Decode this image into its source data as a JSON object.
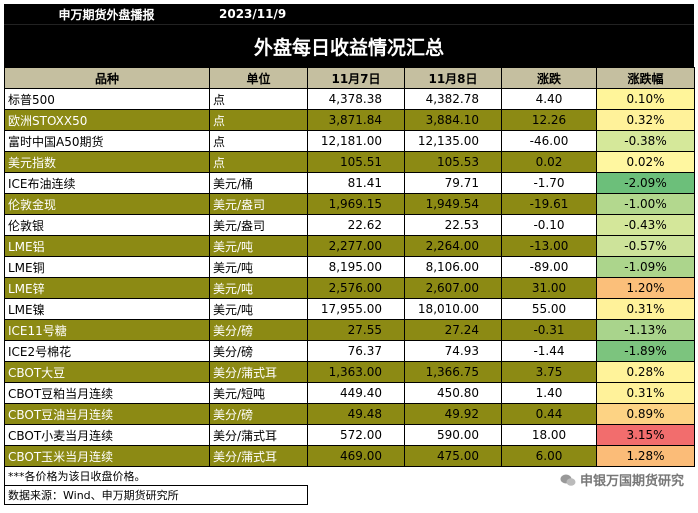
{
  "header": {
    "org": "申万期货外盘播报",
    "date": "2023/11/9"
  },
  "title": "外盘每日收益情况汇总",
  "columns": [
    "品种",
    "单位",
    "11月7日",
    "11月8日",
    "涨跌",
    "涨跌幅"
  ],
  "rows": [
    {
      "name": "标普500",
      "unit": "点",
      "d7": "4,378.38",
      "d8": "4,382.78",
      "chg": "4.40",
      "pct": "0.10%",
      "olive": false,
      "color": "#fff59a"
    },
    {
      "name": "欧洲STOXX50",
      "unit": "点",
      "d7": "3,871.84",
      "d8": "3,884.10",
      "chg": "12.26",
      "pct": "0.32%",
      "olive": true,
      "color": "#fff29a"
    },
    {
      "name": "富时中国A50期货",
      "unit": "点",
      "d7": "12,181.00",
      "d8": "12,135.00",
      "chg": "-46.00",
      "pct": "-0.38%",
      "olive": false,
      "color": "#d5e89a"
    },
    {
      "name": "美元指数",
      "unit": "点",
      "d7": "105.51",
      "d8": "105.53",
      "chg": "0.02",
      "pct": "0.02%",
      "olive": true,
      "color": "#fff7a0"
    },
    {
      "name": "ICE布油连续",
      "unit": "美元/桶",
      "d7": "81.41",
      "d8": "79.71",
      "chg": "-1.70",
      "pct": "-2.09%",
      "olive": false,
      "color": "#6cbf7a"
    },
    {
      "name": "伦敦金现",
      "unit": "美元/盎司",
      "d7": "1,969.15",
      "d8": "1,949.54",
      "chg": "-19.61",
      "pct": "-1.00%",
      "olive": true,
      "color": "#b3d88e"
    },
    {
      "name": "伦敦银",
      "unit": "美元/盎司",
      "d7": "22.62",
      "d8": "22.53",
      "chg": "-0.10",
      "pct": "-0.43%",
      "olive": false,
      "color": "#d4e79a"
    },
    {
      "name": "LME铝",
      "unit": "美元/吨",
      "d7": "2,277.00",
      "d8": "2,264.00",
      "chg": "-13.00",
      "pct": "-0.57%",
      "olive": true,
      "color": "#cde39a"
    },
    {
      "name": "LME铜",
      "unit": "美元/吨",
      "d7": "8,195.00",
      "d8": "8,106.00",
      "chg": "-89.00",
      "pct": "-1.09%",
      "olive": false,
      "color": "#acd58c"
    },
    {
      "name": "LME锌",
      "unit": "美元/吨",
      "d7": "2,576.00",
      "d8": "2,607.00",
      "chg": "31.00",
      "pct": "1.20%",
      "olive": true,
      "color": "#fbbf7a"
    },
    {
      "name": "LME镍",
      "unit": "美元/吨",
      "d7": "17,955.00",
      "d8": "18,010.00",
      "chg": "55.00",
      "pct": "0.31%",
      "olive": false,
      "color": "#fff29a"
    },
    {
      "name": "ICE11号糖",
      "unit": "美分/磅",
      "d7": "27.55",
      "d8": "27.24",
      "chg": "-0.31",
      "pct": "-1.13%",
      "olive": true,
      "color": "#a9d48c"
    },
    {
      "name": "ICE2号棉花",
      "unit": "美分/磅",
      "d7": "76.37",
      "d8": "74.93",
      "chg": "-1.44",
      "pct": "-1.89%",
      "olive": false,
      "color": "#7cc47e"
    },
    {
      "name": "CBOT大豆",
      "unit": "美分/蒲式耳",
      "d7": "1,363.00",
      "d8": "1,366.75",
      "chg": "3.75",
      "pct": "0.28%",
      "olive": true,
      "color": "#fff39a"
    },
    {
      "name": "CBOT豆粕当月连续",
      "unit": "美元/短吨",
      "d7": "449.40",
      "d8": "450.80",
      "chg": "1.40",
      "pct": "0.31%",
      "olive": false,
      "color": "#fff29a"
    },
    {
      "name": "CBOT豆油当月连续",
      "unit": "美分/磅",
      "d7": "49.48",
      "d8": "49.92",
      "chg": "0.44",
      "pct": "0.89%",
      "olive": true,
      "color": "#fdd384"
    },
    {
      "name": "CBOT小麦当月连续",
      "unit": "美分/蒲式耳",
      "d7": "572.00",
      "d8": "590.00",
      "chg": "18.00",
      "pct": "3.15%",
      "olive": false,
      "color": "#f26d6d"
    },
    {
      "name": "CBOT玉米当月连续",
      "unit": "美分/蒲式耳",
      "d7": "469.00",
      "d8": "475.00",
      "chg": "6.00",
      "pct": "1.28%",
      "olive": true,
      "color": "#fbbc78"
    }
  ],
  "footer": {
    "note": "***各价格为该日收盘价格。",
    "source": "数据来源：Wind、申万期货研究所"
  },
  "watermark": "申银万国期货研究"
}
